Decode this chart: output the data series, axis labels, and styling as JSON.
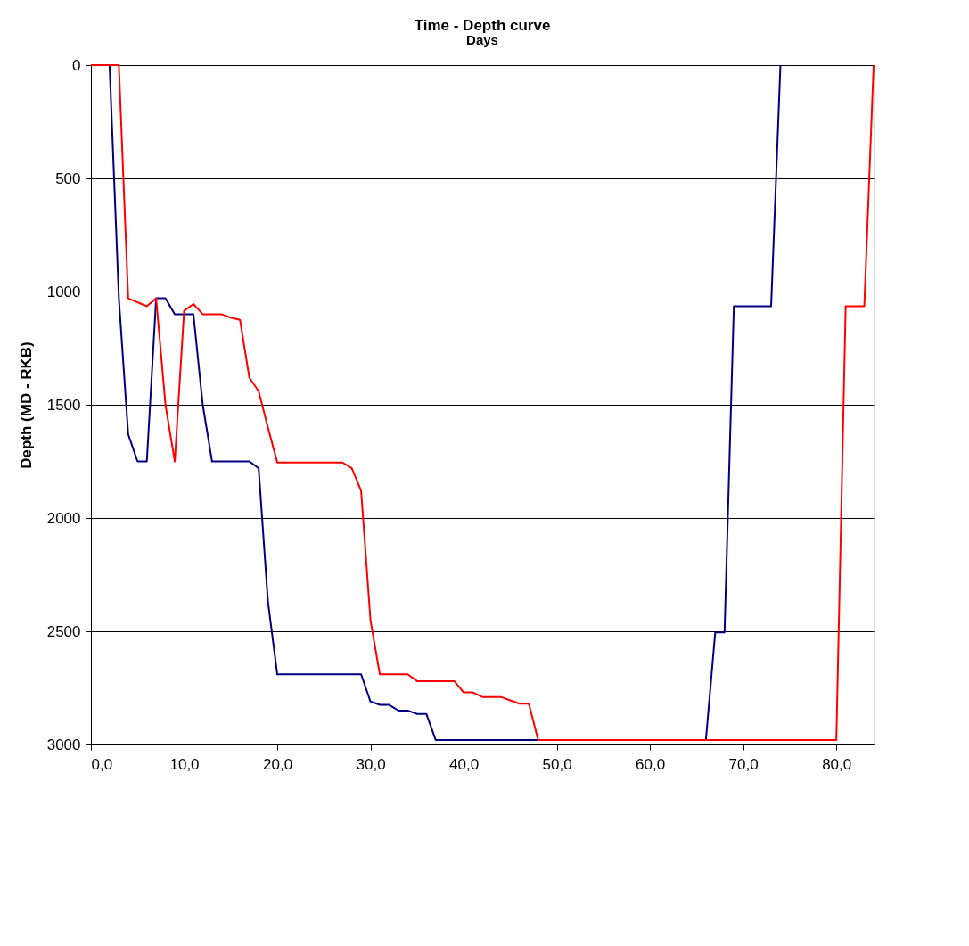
{
  "chart_data": {
    "type": "line",
    "title": "Time - Depth curve",
    "xlabel": "Days",
    "ylabel": "Depth (MD - RKB)",
    "xlim": [
      0,
      84
    ],
    "xticks": [
      {
        "value": 0,
        "label": "0,0"
      },
      {
        "value": 10,
        "label": "10,0"
      },
      {
        "value": 20,
        "label": "20,0"
      },
      {
        "value": 30,
        "label": "30,0"
      },
      {
        "value": 40,
        "label": "40,0"
      },
      {
        "value": 50,
        "label": "50,0"
      },
      {
        "value": 60,
        "label": "60,0"
      },
      {
        "value": 70,
        "label": "70,0"
      },
      {
        "value": 80,
        "label": "80,0"
      }
    ],
    "ylim": [
      3000,
      0
    ],
    "yticks": [
      0,
      500,
      1000,
      1500,
      2000,
      2500,
      3000
    ],
    "grid": "y",
    "legend": false,
    "marker": "none",
    "line_style": "solid",
    "series": [
      {
        "color": "#000080",
        "x": [
          0,
          2,
          3,
          4,
          5,
          6,
          7,
          8,
          9,
          11,
          12,
          13,
          17,
          18,
          19,
          20,
          29,
          30,
          31,
          32,
          33,
          34,
          35,
          36,
          37,
          66,
          67,
          68,
          69,
          73,
          74
        ],
        "values": [
          0,
          0,
          1030,
          1630,
          1750,
          1750,
          1030,
          1030,
          1100,
          1100,
          1500,
          1750,
          1750,
          1780,
          2370,
          2690,
          2690,
          2810,
          2825,
          2825,
          2850,
          2850,
          2865,
          2865,
          2980,
          2980,
          2505,
          2505,
          1065,
          1065,
          0
        ]
      },
      {
        "color": "#ff0000",
        "x": [
          0,
          3,
          4,
          6,
          7,
          8,
          9,
          10,
          11,
          12,
          14,
          15,
          16,
          17,
          18,
          19,
          20,
          27,
          28,
          29,
          30,
          31,
          34,
          35,
          39,
          40,
          41,
          42,
          44,
          45,
          46,
          47,
          48,
          80,
          81,
          83,
          84
        ],
        "values": [
          0,
          0,
          1030,
          1065,
          1030,
          1500,
          1750,
          1085,
          1055,
          1100,
          1100,
          1115,
          1125,
          1380,
          1440,
          1600,
          1755,
          1755,
          1780,
          1880,
          2450,
          2690,
          2690,
          2720,
          2720,
          2770,
          2770,
          2790,
          2790,
          2805,
          2820,
          2820,
          2980,
          2980,
          1065,
          1065,
          0
        ]
      }
    ]
  }
}
